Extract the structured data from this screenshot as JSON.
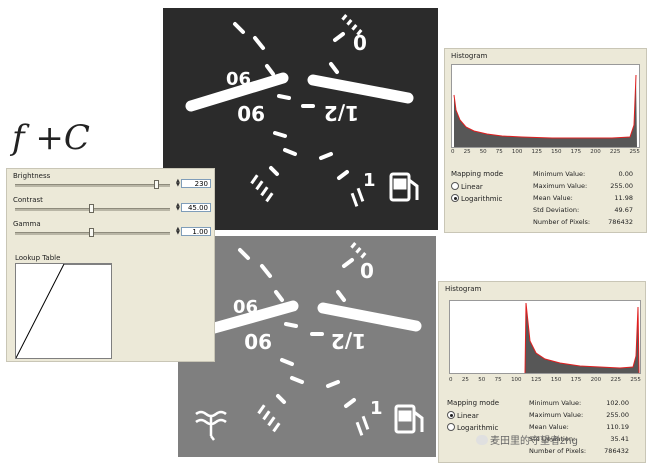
{
  "formula": "f +C",
  "adjust": {
    "brightness_label": "Brightness",
    "brightness_value": "230",
    "contrast_label": "Contrast",
    "contrast_value": "45.00",
    "gamma_label": "Gamma",
    "gamma_value": "1.00",
    "lut_label": "Lookup Table"
  },
  "gauge_labels": {
    "zero": "0",
    "ninety": "90",
    "half": "1/2",
    "one": "1"
  },
  "hist_top": {
    "title": "Histogram",
    "axis_ticks": [
      "0",
      "25",
      "50",
      "75",
      "100",
      "125",
      "150",
      "175",
      "200",
      "225",
      "255"
    ],
    "mapping_title": "Mapping mode",
    "opt_linear": "Linear",
    "opt_log": "Logarithmic",
    "selected": "log",
    "stats": [
      {
        "k": "Minimum Value:",
        "v": "0.00"
      },
      {
        "k": "Maximum Value:",
        "v": "255.00"
      },
      {
        "k": "Mean Value:",
        "v": "11.98"
      },
      {
        "k": "Std Deviation:",
        "v": "49.67"
      },
      {
        "k": "Number of Pixels:",
        "v": "786432"
      }
    ]
  },
  "hist_bot": {
    "title": "Histogram",
    "axis_ticks": [
      "0",
      "25",
      "50",
      "75",
      "100",
      "125",
      "150",
      "175",
      "200",
      "225",
      "255"
    ],
    "mapping_title": "Mapping mode",
    "opt_linear": "Linear",
    "opt_log": "Logarithmic",
    "selected": "linear",
    "stats": [
      {
        "k": "Minimum Value:",
        "v": "102.00"
      },
      {
        "k": "Maximum Value:",
        "v": "255.00"
      },
      {
        "k": "Mean Value:",
        "v": "110.19"
      },
      {
        "k": "Std Deviation:",
        "v": "35.41"
      },
      {
        "k": "Number of Pixels:",
        "v": "786432"
      }
    ]
  },
  "watermark": "麦田里的守望者zhg",
  "colors": {
    "hist_line": "#e02020",
    "panel_bg": "#ece9d8",
    "image_dark": "#2b2b2b",
    "image_gray": "#7f7f7f"
  }
}
